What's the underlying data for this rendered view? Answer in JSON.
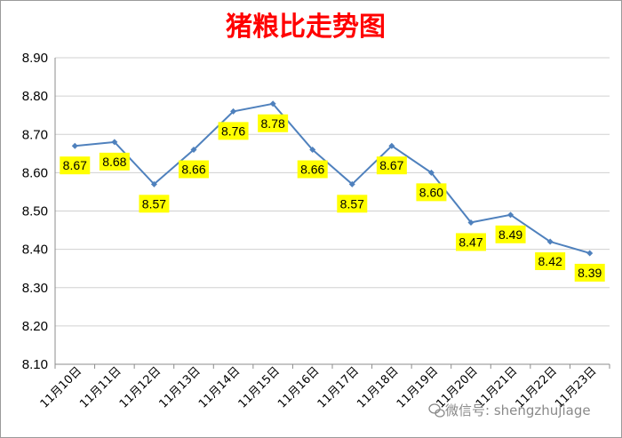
{
  "chart_data": {
    "type": "line",
    "title": "猪粮比走势图",
    "xlabel": "",
    "ylabel": "",
    "categories": [
      "11月10日",
      "11月11日",
      "11月12日",
      "11月13日",
      "11月14日",
      "11月15日",
      "11月16日",
      "11月17日",
      "11月18日",
      "11月19日",
      "11月20日",
      "11月21日",
      "11月22日",
      "11月23日"
    ],
    "values": [
      8.67,
      8.68,
      8.57,
      8.66,
      8.76,
      8.78,
      8.66,
      8.57,
      8.67,
      8.6,
      8.47,
      8.49,
      8.42,
      8.39
    ],
    "data_labels": [
      "8.67",
      "8.68",
      "8.57",
      "8.66",
      "8.76",
      "8.78",
      "8.66",
      "8.57",
      "8.67",
      "8.60",
      "8.47",
      "8.49",
      "8.42",
      "8.39"
    ],
    "ylim": [
      8.1,
      8.9
    ],
    "yticks": [
      "8.10",
      "8.20",
      "8.30",
      "8.40",
      "8.50",
      "8.60",
      "8.70",
      "8.80",
      "8.90"
    ],
    "grid": true,
    "legend": "none",
    "colors": {
      "line": "#4f81bd",
      "label_bg": "#ffff00",
      "title": "#ff0000",
      "grid": "#d0d0d0"
    }
  },
  "watermark": "微信号: shengzhujiage"
}
